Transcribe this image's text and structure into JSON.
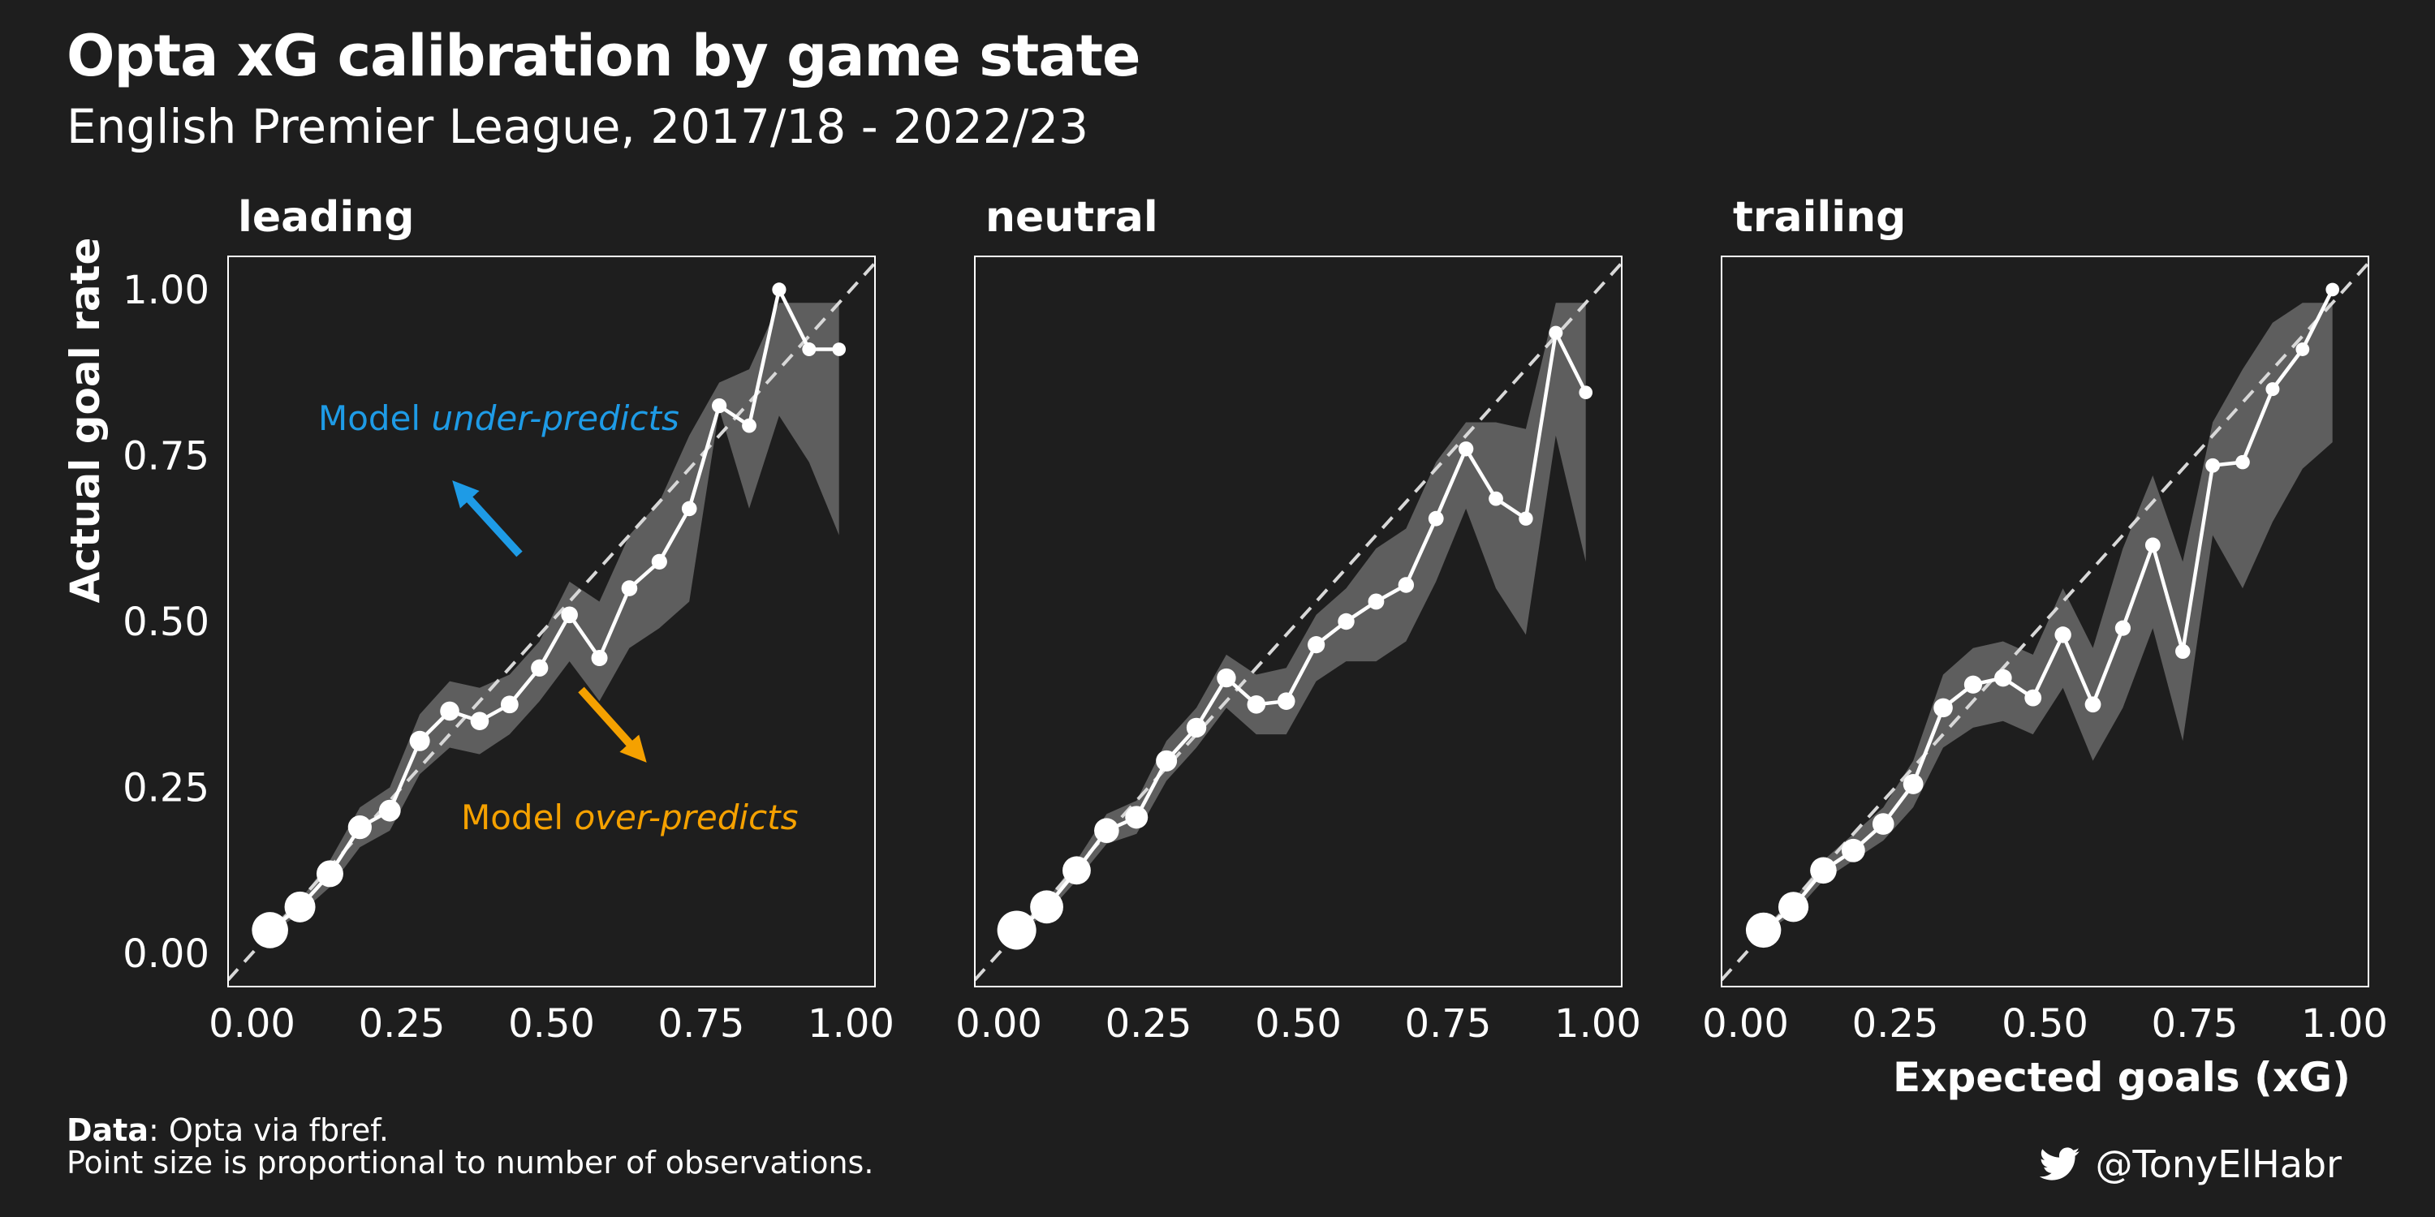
{
  "title": "Opta xG calibration by game state",
  "subtitle": "English Premier League, 2017/18 - 2022/23",
  "caption": {
    "data_bold": "Data",
    "data_text": ": Opta via fbref.",
    "line2": "Point size is proportional to number of observations."
  },
  "credit": {
    "handle": "@TonyElHabr",
    "icon": "twitter-bird-icon"
  },
  "annotations": {
    "under": {
      "prefix": "Model ",
      "emph": "under-predicts",
      "color": "#1e9be6"
    },
    "over": {
      "prefix": "Model ",
      "emph": "over-predicts",
      "color": "#f5a100"
    }
  },
  "colors": {
    "background": "#1e1e1e",
    "ribbon": "#5e5e5e",
    "line": "#ffffff",
    "reference": "#d8d8d8"
  },
  "chart_data": {
    "type": "line",
    "xlabel": "Expected goals (xG)",
    "ylabel": "Actual goal rate",
    "xlim": [
      -0.04,
      1.04
    ],
    "ylim": [
      -0.05,
      1.05
    ],
    "x_ticks": [
      "0.00",
      "0.25",
      "0.50",
      "0.75",
      "1.00"
    ],
    "y_ticks": [
      "0.00",
      "0.25",
      "0.50",
      "0.75",
      "1.00"
    ],
    "reference_line": "y = x (dashed)",
    "point_size_note": "Point size is proportional to number of observations.",
    "panels": [
      {
        "facet": "leading",
        "x": [
          0.03,
          0.08,
          0.13,
          0.18,
          0.23,
          0.28,
          0.33,
          0.38,
          0.43,
          0.48,
          0.53,
          0.58,
          0.63,
          0.68,
          0.73,
          0.78,
          0.83,
          0.88,
          0.93,
          0.98
        ],
        "y": [
          0.035,
          0.07,
          0.12,
          0.19,
          0.215,
          0.32,
          0.365,
          0.35,
          0.375,
          0.43,
          0.51,
          0.445,
          0.55,
          0.59,
          0.67,
          0.825,
          0.795,
          1.0,
          0.91,
          0.91
        ],
        "lower": [
          0.03,
          0.06,
          0.1,
          0.16,
          0.185,
          0.27,
          0.31,
          0.3,
          0.33,
          0.38,
          0.44,
          0.38,
          0.46,
          0.49,
          0.53,
          0.82,
          0.67,
          0.81,
          0.74,
          0.63
        ],
        "upper": [
          0.04,
          0.08,
          0.14,
          0.22,
          0.25,
          0.36,
          0.41,
          0.4,
          0.42,
          0.47,
          0.56,
          0.53,
          0.63,
          0.68,
          0.78,
          0.86,
          0.88,
          0.98,
          0.98,
          0.98
        ],
        "n": [
          13000,
          8000,
          5000,
          3200,
          2300,
          1700,
          1300,
          1000,
          850,
          700,
          600,
          500,
          420,
          360,
          300,
          240,
          190,
          150,
          120,
          100
        ]
      },
      {
        "facet": "neutral",
        "x": [
          0.03,
          0.08,
          0.13,
          0.18,
          0.23,
          0.28,
          0.33,
          0.38,
          0.43,
          0.48,
          0.53,
          0.58,
          0.63,
          0.68,
          0.73,
          0.78,
          0.83,
          0.88,
          0.93,
          0.98
        ],
        "y": [
          0.035,
          0.07,
          0.125,
          0.185,
          0.205,
          0.29,
          0.34,
          0.415,
          0.375,
          0.38,
          0.465,
          0.5,
          0.53,
          0.555,
          0.655,
          0.76,
          0.685,
          0.655,
          0.935,
          0.845
        ],
        "lower": [
          0.03,
          0.06,
          0.11,
          0.165,
          0.18,
          0.26,
          0.31,
          0.37,
          0.33,
          0.33,
          0.41,
          0.44,
          0.44,
          0.47,
          0.56,
          0.67,
          0.55,
          0.48,
          0.78,
          0.59
        ],
        "upper": [
          0.04,
          0.08,
          0.14,
          0.21,
          0.23,
          0.32,
          0.37,
          0.45,
          0.42,
          0.43,
          0.51,
          0.55,
          0.61,
          0.64,
          0.74,
          0.8,
          0.8,
          0.79,
          0.98,
          0.98
        ],
        "n": [
          16000,
          10000,
          6000,
          3800,
          2700,
          2000,
          1500,
          1200,
          1000,
          820,
          700,
          580,
          480,
          400,
          330,
          260,
          210,
          160,
          130,
          100
        ]
      },
      {
        "facet": "trailing",
        "x": [
          0.03,
          0.08,
          0.13,
          0.18,
          0.23,
          0.28,
          0.33,
          0.38,
          0.43,
          0.48,
          0.53,
          0.58,
          0.63,
          0.68,
          0.73,
          0.78,
          0.83,
          0.88,
          0.93,
          0.98
        ],
        "y": [
          0.035,
          0.07,
          0.125,
          0.155,
          0.195,
          0.255,
          0.37,
          0.405,
          0.415,
          0.385,
          0.48,
          0.375,
          0.49,
          0.615,
          0.455,
          0.735,
          0.74,
          0.85,
          0.91,
          1.0
        ],
        "lower": [
          0.03,
          0.06,
          0.11,
          0.14,
          0.17,
          0.22,
          0.31,
          0.34,
          0.35,
          0.33,
          0.4,
          0.29,
          0.37,
          0.49,
          0.32,
          0.63,
          0.55,
          0.65,
          0.73,
          0.77
        ],
        "upper": [
          0.04,
          0.08,
          0.14,
          0.18,
          0.22,
          0.29,
          0.42,
          0.46,
          0.47,
          0.45,
          0.55,
          0.46,
          0.61,
          0.72,
          0.59,
          0.8,
          0.88,
          0.95,
          0.98,
          0.98
        ],
        "n": [
          12000,
          7500,
          4800,
          3000,
          2200,
          1600,
          1250,
          950,
          800,
          650,
          560,
          460,
          380,
          320,
          260,
          210,
          170,
          130,
          110,
          90
        ]
      }
    ]
  }
}
